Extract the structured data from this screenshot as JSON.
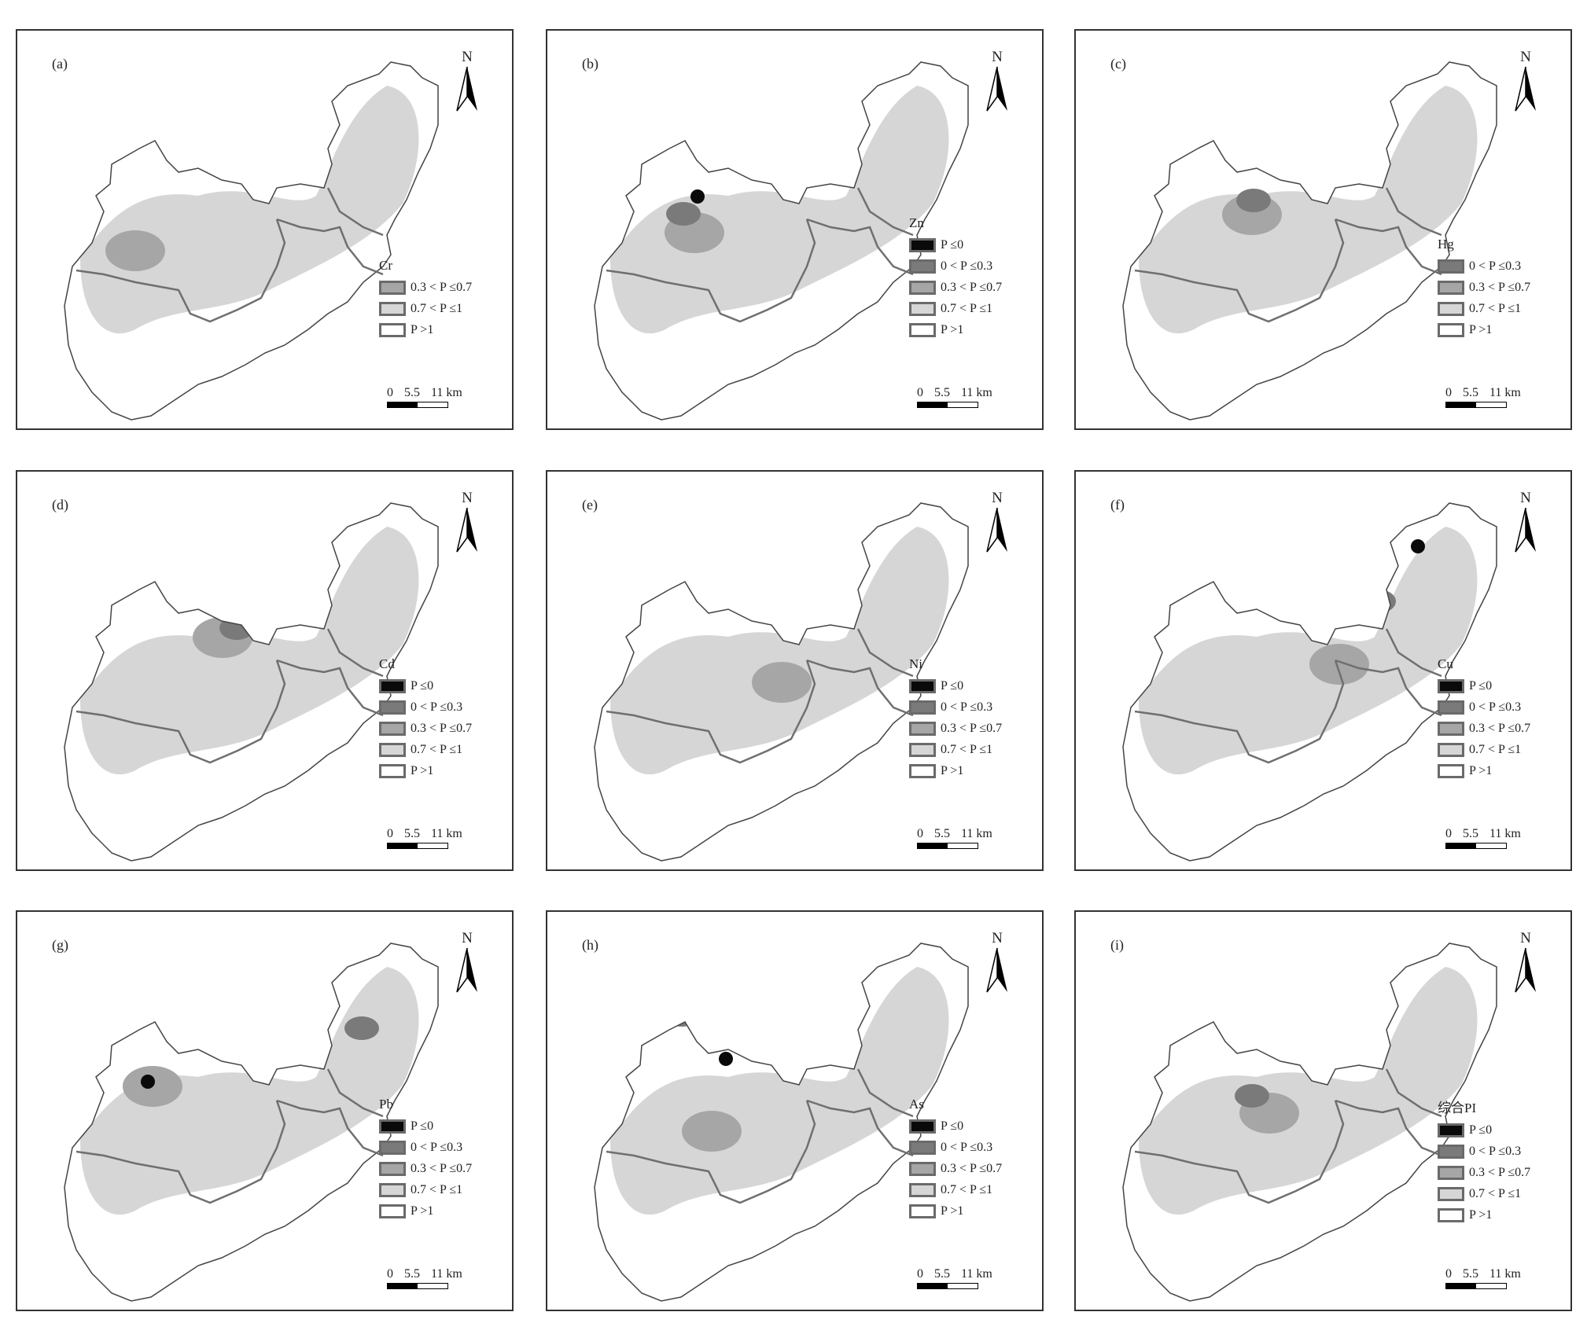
{
  "colors": {
    "p_le_0": "#0a0a0a",
    "p_0_03": "#7a7a7a",
    "p_03_07": "#a6a6a6",
    "p_07_1": "#d6d6d6",
    "p_gt_1": "#ffffff",
    "boundary": "#6f6f6f"
  },
  "legend_labels": {
    "p_le_0": "P ≤0",
    "p_0_03": "0 < P ≤0.3",
    "p_03_07": "0.3 < P ≤0.7",
    "p_07_1": "0.7 < P ≤1",
    "p_gt_1": "P >1"
  },
  "scale_bar": {
    "zero": "0",
    "mid": "5.5",
    "end": "11 km"
  },
  "north_label": "N",
  "panels": [
    {
      "label": "(a)",
      "element": "Cr",
      "classes": [
        "p_03_07",
        "p_07_1",
        "p_gt_1"
      ]
    },
    {
      "label": "(b)",
      "element": "Zn",
      "classes": [
        "p_le_0",
        "p_0_03",
        "p_03_07",
        "p_07_1",
        "p_gt_1"
      ]
    },
    {
      "label": "(c)",
      "element": "Hg",
      "classes": [
        "p_0_03",
        "p_03_07",
        "p_07_1",
        "p_gt_1"
      ]
    },
    {
      "label": "(d)",
      "element": "Cd",
      "classes": [
        "p_le_0",
        "p_0_03",
        "p_03_07",
        "p_07_1",
        "p_gt_1"
      ]
    },
    {
      "label": "(e)",
      "element": "Ni",
      "classes": [
        "p_le_0",
        "p_0_03",
        "p_03_07",
        "p_07_1",
        "p_gt_1"
      ]
    },
    {
      "label": "(f)",
      "element": "Cu",
      "classes": [
        "p_le_0",
        "p_0_03",
        "p_03_07",
        "p_07_1",
        "p_gt_1"
      ]
    },
    {
      "label": "(g)",
      "element": "Pb",
      "classes": [
        "p_le_0",
        "p_0_03",
        "p_03_07",
        "p_07_1",
        "p_gt_1"
      ]
    },
    {
      "label": "(h)",
      "element": "As",
      "classes": [
        "p_le_0",
        "p_0_03",
        "p_03_07",
        "p_07_1",
        "p_gt_1"
      ]
    },
    {
      "label": "(i)",
      "element": "综合PI",
      "classes": [
        "p_le_0",
        "p_0_03",
        "p_03_07",
        "p_07_1",
        "p_gt_1"
      ]
    }
  ]
}
